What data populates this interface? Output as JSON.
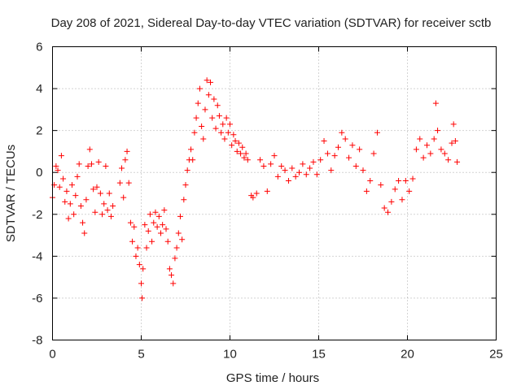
{
  "chart_data": {
    "type": "scatter",
    "title": "Day 208 of 2021, Sidereal Day-to-day VTEC variation (SDTVAR) for receiver sctb",
    "xlabel": "GPS time / hours",
    "ylabel": "SDTVAR / TECUs",
    "xlim": [
      0,
      25
    ],
    "ylim": [
      -8,
      6
    ],
    "x_ticks": [
      0,
      5,
      10,
      15,
      20,
      25
    ],
    "y_ticks": [
      -8,
      -6,
      -4,
      -2,
      0,
      2,
      4,
      6
    ],
    "x_tick_labels": [
      "0",
      "5",
      "10",
      "15",
      "20",
      "25"
    ],
    "y_tick_labels": [
      "-8",
      "-6",
      "-4",
      "-2",
      "0",
      "2",
      "4",
      "6"
    ],
    "grid": true,
    "legend": "none",
    "marker": "+",
    "color": "#ff0000",
    "series": [
      {
        "name": "SDTVAR",
        "points": [
          [
            0.0,
            -1.2
          ],
          [
            0.1,
            -0.6
          ],
          [
            0.2,
            0.3
          ],
          [
            0.3,
            0.1
          ],
          [
            0.4,
            -0.7
          ],
          [
            0.5,
            0.8
          ],
          [
            0.6,
            -0.3
          ],
          [
            0.7,
            -1.4
          ],
          [
            0.8,
            -0.9
          ],
          [
            0.9,
            -2.2
          ],
          [
            1.0,
            -1.5
          ],
          [
            1.1,
            -0.6
          ],
          [
            1.2,
            -2.0
          ],
          [
            1.3,
            -1.1
          ],
          [
            1.4,
            -0.2
          ],
          [
            1.5,
            0.4
          ],
          [
            1.6,
            -1.6
          ],
          [
            1.7,
            -2.4
          ],
          [
            1.8,
            -2.9
          ],
          [
            1.9,
            -1.3
          ],
          [
            2.0,
            0.3
          ],
          [
            2.1,
            1.1
          ],
          [
            2.2,
            0.4
          ],
          [
            2.3,
            -0.8
          ],
          [
            2.4,
            -1.9
          ],
          [
            2.5,
            -0.7
          ],
          [
            2.6,
            0.5
          ],
          [
            2.7,
            -1.0
          ],
          [
            2.8,
            -2.0
          ],
          [
            2.9,
            -1.5
          ],
          [
            3.0,
            0.3
          ],
          [
            3.1,
            -1.8
          ],
          [
            3.2,
            -1.0
          ],
          [
            3.3,
            -2.1
          ],
          [
            3.4,
            -1.6
          ],
          [
            3.8,
            -0.5
          ],
          [
            3.9,
            0.2
          ],
          [
            4.0,
            -1.2
          ],
          [
            4.1,
            0.6
          ],
          [
            4.2,
            1.0
          ],
          [
            4.3,
            -0.5
          ],
          [
            4.4,
            -2.4
          ],
          [
            4.5,
            -3.3
          ],
          [
            4.6,
            -2.6
          ],
          [
            4.7,
            -4.0
          ],
          [
            4.8,
            -3.6
          ],
          [
            4.9,
            -4.4
          ],
          [
            5.0,
            -5.3
          ],
          [
            5.05,
            -6.0
          ],
          [
            5.1,
            -4.6
          ],
          [
            5.2,
            -2.5
          ],
          [
            5.3,
            -3.6
          ],
          [
            5.4,
            -2.8
          ],
          [
            5.5,
            -2.0
          ],
          [
            5.6,
            -3.3
          ],
          [
            5.7,
            -2.4
          ],
          [
            5.8,
            -1.9
          ],
          [
            5.9,
            -2.6
          ],
          [
            6.0,
            -2.1
          ],
          [
            6.1,
            -2.9
          ],
          [
            6.2,
            -2.5
          ],
          [
            6.3,
            -1.8
          ],
          [
            6.4,
            -2.7
          ],
          [
            6.5,
            -3.3
          ],
          [
            6.6,
            -4.6
          ],
          [
            6.7,
            -4.9
          ],
          [
            6.8,
            -5.3
          ],
          [
            6.9,
            -4.1
          ],
          [
            7.0,
            -3.6
          ],
          [
            7.1,
            -2.9
          ],
          [
            7.2,
            -2.1
          ],
          [
            7.3,
            -3.2
          ],
          [
            7.4,
            -1.3
          ],
          [
            7.5,
            -0.6
          ],
          [
            7.6,
            0.1
          ],
          [
            7.7,
            0.6
          ],
          [
            7.8,
            1.1
          ],
          [
            7.9,
            0.6
          ],
          [
            8.0,
            1.9
          ],
          [
            8.1,
            2.6
          ],
          [
            8.2,
            3.3
          ],
          [
            8.3,
            4.0
          ],
          [
            8.4,
            2.2
          ],
          [
            8.5,
            1.6
          ],
          [
            8.6,
            3.0
          ],
          [
            8.7,
            4.4
          ],
          [
            8.8,
            3.7
          ],
          [
            8.9,
            4.3
          ],
          [
            9.0,
            2.6
          ],
          [
            9.1,
            3.5
          ],
          [
            9.2,
            2.1
          ],
          [
            9.3,
            3.2
          ],
          [
            9.4,
            2.7
          ],
          [
            9.5,
            1.9
          ],
          [
            9.6,
            2.3
          ],
          [
            9.7,
            1.6
          ],
          [
            9.8,
            2.6
          ],
          [
            9.9,
            1.9
          ],
          [
            10.0,
            2.3
          ],
          [
            10.1,
            1.3
          ],
          [
            10.2,
            1.8
          ],
          [
            10.3,
            1.5
          ],
          [
            10.4,
            1.0
          ],
          [
            10.5,
            1.4
          ],
          [
            10.6,
            0.9
          ],
          [
            10.7,
            1.2
          ],
          [
            10.8,
            0.7
          ],
          [
            10.9,
            0.9
          ],
          [
            11.0,
            0.6
          ],
          [
            11.2,
            -1.1
          ],
          [
            11.3,
            -1.2
          ],
          [
            11.5,
            -1.0
          ],
          [
            11.7,
            0.6
          ],
          [
            11.9,
            0.3
          ],
          [
            12.1,
            -0.9
          ],
          [
            12.3,
            0.4
          ],
          [
            12.5,
            0.8
          ],
          [
            12.7,
            -0.2
          ],
          [
            12.9,
            0.3
          ],
          [
            13.1,
            0.1
          ],
          [
            13.3,
            -0.4
          ],
          [
            13.5,
            0.2
          ],
          [
            13.7,
            -0.2
          ],
          [
            13.9,
            0.0
          ],
          [
            14.1,
            0.4
          ],
          [
            14.3,
            -0.1
          ],
          [
            14.5,
            0.2
          ],
          [
            14.7,
            0.5
          ],
          [
            14.9,
            -0.1
          ],
          [
            15.1,
            0.6
          ],
          [
            15.3,
            1.5
          ],
          [
            15.5,
            0.9
          ],
          [
            15.7,
            0.1
          ],
          [
            15.9,
            0.8
          ],
          [
            16.1,
            1.2
          ],
          [
            16.3,
            1.9
          ],
          [
            16.5,
            1.6
          ],
          [
            16.7,
            0.7
          ],
          [
            16.9,
            1.3
          ],
          [
            17.1,
            0.3
          ],
          [
            17.3,
            1.1
          ],
          [
            17.5,
            0.1
          ],
          [
            17.7,
            -0.9
          ],
          [
            17.9,
            -0.4
          ],
          [
            18.1,
            0.9
          ],
          [
            18.3,
            1.9
          ],
          [
            18.5,
            -0.6
          ],
          [
            18.7,
            -1.7
          ],
          [
            18.9,
            -1.9
          ],
          [
            19.1,
            -1.4
          ],
          [
            19.3,
            -0.8
          ],
          [
            19.5,
            -0.4
          ],
          [
            19.7,
            -1.3
          ],
          [
            19.9,
            -0.4
          ],
          [
            20.1,
            -0.9
          ],
          [
            20.3,
            -0.3
          ],
          [
            20.5,
            1.1
          ],
          [
            20.7,
            1.6
          ],
          [
            20.9,
            0.7
          ],
          [
            21.1,
            1.3
          ],
          [
            21.3,
            0.9
          ],
          [
            21.5,
            1.6
          ],
          [
            21.6,
            3.3
          ],
          [
            21.7,
            2.0
          ],
          [
            21.9,
            1.1
          ],
          [
            22.1,
            0.9
          ],
          [
            22.3,
            0.6
          ],
          [
            22.5,
            1.4
          ],
          [
            22.6,
            2.3
          ],
          [
            22.7,
            1.5
          ],
          [
            22.8,
            0.5
          ]
        ]
      }
    ]
  }
}
